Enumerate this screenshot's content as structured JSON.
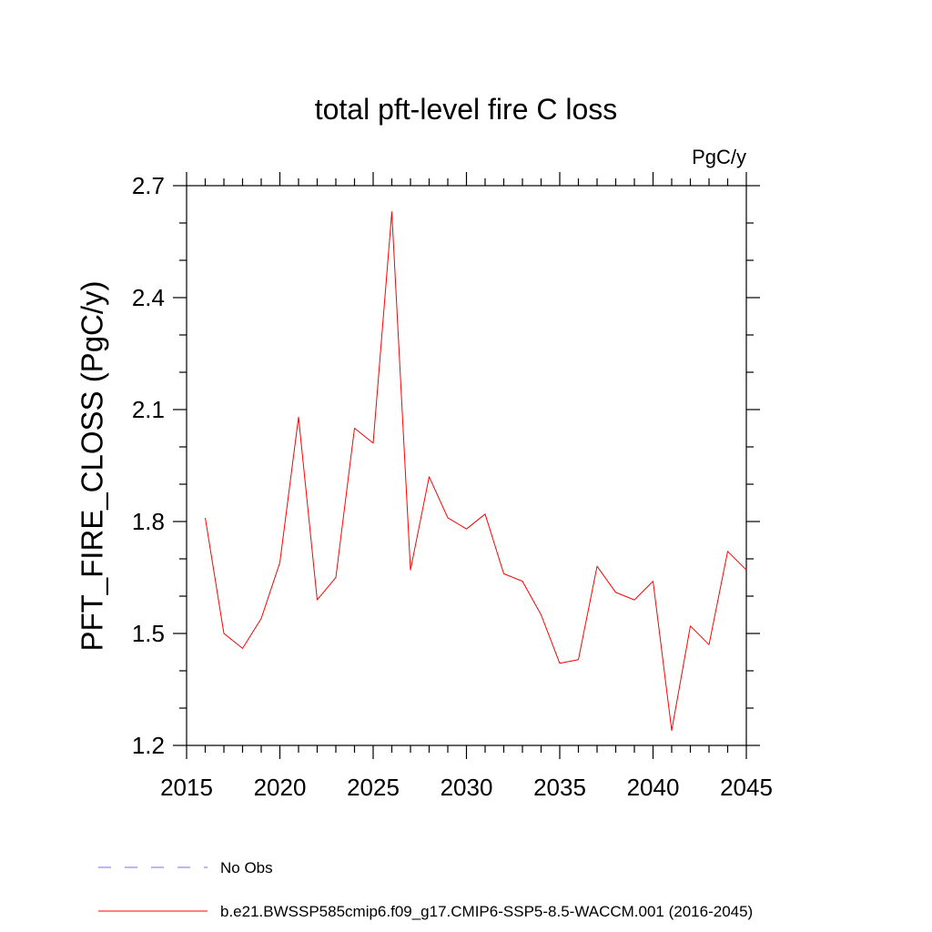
{
  "chart_data": {
    "type": "line",
    "title": "total pft-level fire C loss",
    "units_label": "PgC/y",
    "xlabel": "",
    "ylabel": "PFT_FIRE_CLOSS  (PgC/y)",
    "xlim": [
      2015,
      2045
    ],
    "ylim": [
      1.2,
      2.7
    ],
    "x_ticks": [
      2015,
      2020,
      2025,
      2030,
      2035,
      2040,
      2045
    ],
    "y_ticks": [
      1.2,
      1.5,
      1.8,
      2.1,
      2.4,
      2.7
    ],
    "y_tick_labels": [
      "1.2",
      "1.5",
      "1.8",
      "2.1",
      "2.4",
      "2.7"
    ],
    "x_minor_step": 1,
    "y_minor_step": 0.1,
    "grid": false,
    "legend_position": "bottom-left",
    "series": [
      {
        "name": "b.e21.BWSSP585cmip6.f09_g17.CMIP6-SSP5-8.5-WACCM.001 (2016-2045)",
        "color": "#ff0000",
        "style": "solid",
        "x": [
          2016,
          2017,
          2018,
          2019,
          2020,
          2021,
          2022,
          2023,
          2024,
          2025,
          2026,
          2027,
          2028,
          2029,
          2030,
          2031,
          2032,
          2033,
          2034,
          2035,
          2036,
          2037,
          2038,
          2039,
          2040,
          2041,
          2042,
          2043,
          2044,
          2045
        ],
        "values": [
          1.81,
          1.5,
          1.46,
          1.54,
          1.69,
          2.08,
          1.59,
          1.65,
          2.05,
          2.01,
          2.63,
          1.67,
          1.92,
          1.81,
          1.78,
          1.82,
          1.66,
          1.64,
          1.55,
          1.42,
          1.43,
          1.68,
          1.61,
          1.59,
          1.64,
          1.24,
          1.52,
          1.47,
          1.72,
          1.67
        ]
      }
    ],
    "legend": [
      {
        "label": "No Obs",
        "color": "#7b68ee",
        "style": "dashed"
      },
      {
        "label": "b.e21.BWSSP585cmip6.f09_g17.CMIP6-SSP5-8.5-WACCM.001 (2016-2045)",
        "color": "#ff0000",
        "style": "solid"
      }
    ]
  }
}
